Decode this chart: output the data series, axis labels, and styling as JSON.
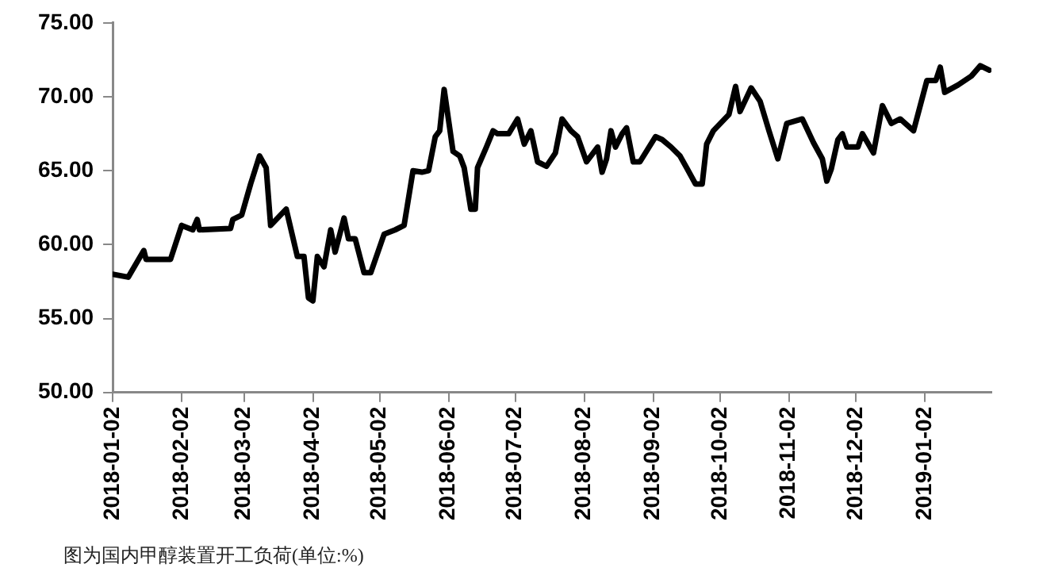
{
  "chart_data": {
    "type": "line",
    "annotations": [
      "图为国内甲醇装置开工负荷(单位:%)"
    ],
    "x": [
      "2018-01-02",
      "2018-01-09",
      "2018-01-16",
      "2018-01-17",
      "2018-01-28",
      "2018-02-02",
      "2018-02-07",
      "2018-02-09",
      "2018-02-10",
      "2018-02-24",
      "2018-02-25",
      "2018-03-01",
      "2018-03-05",
      "2018-03-09",
      "2018-03-12",
      "2018-03-14",
      "2018-03-21",
      "2018-03-26",
      "2018-03-29",
      "2018-03-31",
      "2018-04-02",
      "2018-04-04",
      "2018-04-07",
      "2018-04-10",
      "2018-04-12",
      "2018-04-16",
      "2018-04-18",
      "2018-04-21",
      "2018-04-25",
      "2018-04-28",
      "2018-05-04",
      "2018-05-09",
      "2018-05-13",
      "2018-05-17",
      "2018-05-21",
      "2018-05-24",
      "2018-05-27",
      "2018-05-29",
      "2018-05-31",
      "2018-06-04",
      "2018-06-07",
      "2018-06-09",
      "2018-06-12",
      "2018-06-14",
      "2018-06-15",
      "2018-06-19",
      "2018-06-22",
      "2018-06-24",
      "2018-06-29",
      "2018-07-03",
      "2018-07-06",
      "2018-07-09",
      "2018-07-12",
      "2018-07-16",
      "2018-07-20",
      "2018-07-23",
      "2018-07-27",
      "2018-07-30",
      "2018-08-03",
      "2018-08-08",
      "2018-08-10",
      "2018-08-12",
      "2018-08-14",
      "2018-08-16",
      "2018-08-19",
      "2018-08-21",
      "2018-08-24",
      "2018-08-27",
      "2018-09-03",
      "2018-09-06",
      "2018-09-10",
      "2018-09-14",
      "2018-09-17",
      "2018-09-21",
      "2018-09-24",
      "2018-09-26",
      "2018-09-29",
      "2018-10-06",
      "2018-10-09",
      "2018-10-11",
      "2018-10-16",
      "2018-10-20",
      "2018-10-24",
      "2018-10-28",
      "2018-11-01",
      "2018-11-08",
      "2018-11-13",
      "2018-11-17",
      "2018-11-19",
      "2018-11-21",
      "2018-11-24",
      "2018-11-26",
      "2018-11-28",
      "2018-12-03",
      "2018-12-05",
      "2018-12-10",
      "2018-12-14",
      "2018-12-18",
      "2018-12-22",
      "2018-12-28",
      "2019-01-03",
      "2019-01-07",
      "2019-01-09",
      "2019-01-11",
      "2019-01-17",
      "2019-01-23",
      "2019-01-27",
      "2019-01-31"
    ],
    "series": [
      {
        "color": "#000000",
        "values": [
          58.0,
          57.8,
          59.6,
          59.0,
          59.0,
          61.3,
          61.0,
          61.7,
          61.0,
          61.1,
          61.7,
          62.0,
          64.1,
          66.0,
          65.2,
          61.3,
          62.4,
          59.2,
          59.2,
          56.4,
          56.2,
          59.2,
          58.5,
          61.0,
          59.5,
          61.8,
          60.4,
          60.4,
          58.1,
          58.1,
          60.7,
          61.0,
          61.3,
          65.0,
          64.9,
          65.0,
          67.3,
          67.7,
          70.5,
          66.3,
          66.0,
          65.2,
          62.4,
          62.4,
          65.2,
          66.6,
          67.7,
          67.5,
          67.5,
          68.5,
          66.8,
          67.7,
          65.6,
          65.3,
          66.2,
          68.5,
          67.7,
          67.3,
          65.6,
          66.6,
          64.9,
          65.8,
          67.7,
          66.6,
          67.5,
          67.9,
          65.6,
          65.6,
          67.3,
          67.1,
          66.6,
          66.0,
          65.2,
          64.1,
          64.1,
          66.8,
          67.7,
          68.8,
          70.7,
          69.0,
          70.6,
          69.7,
          67.7,
          65.8,
          68.2,
          68.5,
          66.9,
          65.8,
          64.3,
          65.1,
          67.1,
          67.5,
          66.6,
          66.6,
          67.5,
          66.2,
          69.4,
          68.2,
          68.5,
          67.7,
          71.1,
          71.1,
          72.0,
          70.3,
          70.8,
          71.4,
          72.1,
          71.8
        ]
      }
    ],
    "xlim": [
      "2018-01-02",
      "2019-02-01"
    ],
    "xticks": [
      "2018-01-02",
      "2018-02-02",
      "2018-03-02",
      "2018-04-02",
      "2018-05-02",
      "2018-06-02",
      "2018-07-02",
      "2018-08-02",
      "2018-09-02",
      "2018-10-02",
      "2018-11-02",
      "2018-12-02",
      "2019-01-02"
    ],
    "ylim": [
      50,
      75
    ],
    "yticks": [
      {
        "value": 50,
        "label": "50.00"
      },
      {
        "value": 55,
        "label": "55.00"
      },
      {
        "value": 60,
        "label": "60.00"
      },
      {
        "value": 65,
        "label": "65.00"
      },
      {
        "value": 70,
        "label": "70.00"
      },
      {
        "value": 75,
        "label": "75.00"
      }
    ],
    "grid": false,
    "legend": false,
    "marker": "none",
    "line_style": "solid"
  }
}
